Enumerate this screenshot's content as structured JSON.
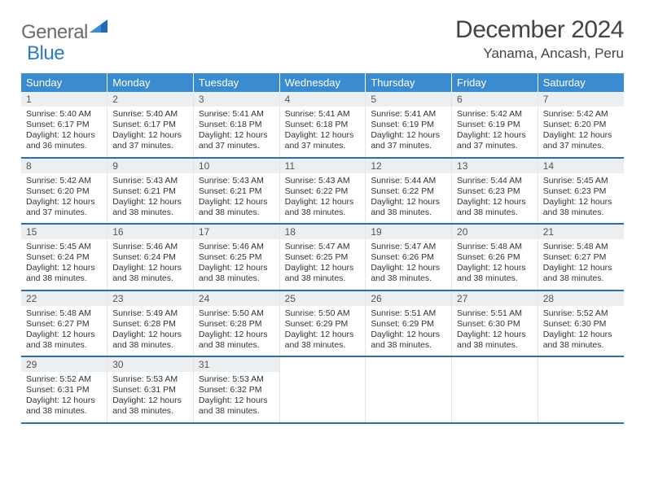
{
  "logo": {
    "word1": "General",
    "word2": "Blue"
  },
  "header": {
    "title": "December 2024",
    "location": "Yanama, Ancash, Peru"
  },
  "calendar": {
    "header_bg": "#3b8bd0",
    "header_text_color": "#ffffff",
    "row_divider_color": "#2f6fa8",
    "daynum_bg": "#eceff1",
    "columns": [
      "Sunday",
      "Monday",
      "Tuesday",
      "Wednesday",
      "Thursday",
      "Friday",
      "Saturday"
    ],
    "weeks": [
      [
        {
          "day": "1",
          "sunrise": "5:40 AM",
          "sunset": "6:17 PM",
          "daylight": "12 hours and 36 minutes."
        },
        {
          "day": "2",
          "sunrise": "5:40 AM",
          "sunset": "6:17 PM",
          "daylight": "12 hours and 37 minutes."
        },
        {
          "day": "3",
          "sunrise": "5:41 AM",
          "sunset": "6:18 PM",
          "daylight": "12 hours and 37 minutes."
        },
        {
          "day": "4",
          "sunrise": "5:41 AM",
          "sunset": "6:18 PM",
          "daylight": "12 hours and 37 minutes."
        },
        {
          "day": "5",
          "sunrise": "5:41 AM",
          "sunset": "6:19 PM",
          "daylight": "12 hours and 37 minutes."
        },
        {
          "day": "6",
          "sunrise": "5:42 AM",
          "sunset": "6:19 PM",
          "daylight": "12 hours and 37 minutes."
        },
        {
          "day": "7",
          "sunrise": "5:42 AM",
          "sunset": "6:20 PM",
          "daylight": "12 hours and 37 minutes."
        }
      ],
      [
        {
          "day": "8",
          "sunrise": "5:42 AM",
          "sunset": "6:20 PM",
          "daylight": "12 hours and 37 minutes."
        },
        {
          "day": "9",
          "sunrise": "5:43 AM",
          "sunset": "6:21 PM",
          "daylight": "12 hours and 38 minutes."
        },
        {
          "day": "10",
          "sunrise": "5:43 AM",
          "sunset": "6:21 PM",
          "daylight": "12 hours and 38 minutes."
        },
        {
          "day": "11",
          "sunrise": "5:43 AM",
          "sunset": "6:22 PM",
          "daylight": "12 hours and 38 minutes."
        },
        {
          "day": "12",
          "sunrise": "5:44 AM",
          "sunset": "6:22 PM",
          "daylight": "12 hours and 38 minutes."
        },
        {
          "day": "13",
          "sunrise": "5:44 AM",
          "sunset": "6:23 PM",
          "daylight": "12 hours and 38 minutes."
        },
        {
          "day": "14",
          "sunrise": "5:45 AM",
          "sunset": "6:23 PM",
          "daylight": "12 hours and 38 minutes."
        }
      ],
      [
        {
          "day": "15",
          "sunrise": "5:45 AM",
          "sunset": "6:24 PM",
          "daylight": "12 hours and 38 minutes."
        },
        {
          "day": "16",
          "sunrise": "5:46 AM",
          "sunset": "6:24 PM",
          "daylight": "12 hours and 38 minutes."
        },
        {
          "day": "17",
          "sunrise": "5:46 AM",
          "sunset": "6:25 PM",
          "daylight": "12 hours and 38 minutes."
        },
        {
          "day": "18",
          "sunrise": "5:47 AM",
          "sunset": "6:25 PM",
          "daylight": "12 hours and 38 minutes."
        },
        {
          "day": "19",
          "sunrise": "5:47 AM",
          "sunset": "6:26 PM",
          "daylight": "12 hours and 38 minutes."
        },
        {
          "day": "20",
          "sunrise": "5:48 AM",
          "sunset": "6:26 PM",
          "daylight": "12 hours and 38 minutes."
        },
        {
          "day": "21",
          "sunrise": "5:48 AM",
          "sunset": "6:27 PM",
          "daylight": "12 hours and 38 minutes."
        }
      ],
      [
        {
          "day": "22",
          "sunrise": "5:48 AM",
          "sunset": "6:27 PM",
          "daylight": "12 hours and 38 minutes."
        },
        {
          "day": "23",
          "sunrise": "5:49 AM",
          "sunset": "6:28 PM",
          "daylight": "12 hours and 38 minutes."
        },
        {
          "day": "24",
          "sunrise": "5:50 AM",
          "sunset": "6:28 PM",
          "daylight": "12 hours and 38 minutes."
        },
        {
          "day": "25",
          "sunrise": "5:50 AM",
          "sunset": "6:29 PM",
          "daylight": "12 hours and 38 minutes."
        },
        {
          "day": "26",
          "sunrise": "5:51 AM",
          "sunset": "6:29 PM",
          "daylight": "12 hours and 38 minutes."
        },
        {
          "day": "27",
          "sunrise": "5:51 AM",
          "sunset": "6:30 PM",
          "daylight": "12 hours and 38 minutes."
        },
        {
          "day": "28",
          "sunrise": "5:52 AM",
          "sunset": "6:30 PM",
          "daylight": "12 hours and 38 minutes."
        }
      ],
      [
        {
          "day": "29",
          "sunrise": "5:52 AM",
          "sunset": "6:31 PM",
          "daylight": "12 hours and 38 minutes."
        },
        {
          "day": "30",
          "sunrise": "5:53 AM",
          "sunset": "6:31 PM",
          "daylight": "12 hours and 38 minutes."
        },
        {
          "day": "31",
          "sunrise": "5:53 AM",
          "sunset": "6:32 PM",
          "daylight": "12 hours and 38 minutes."
        },
        null,
        null,
        null,
        null
      ]
    ],
    "labels": {
      "sunrise": "Sunrise: ",
      "sunset": "Sunset: ",
      "daylight": "Daylight: "
    }
  }
}
